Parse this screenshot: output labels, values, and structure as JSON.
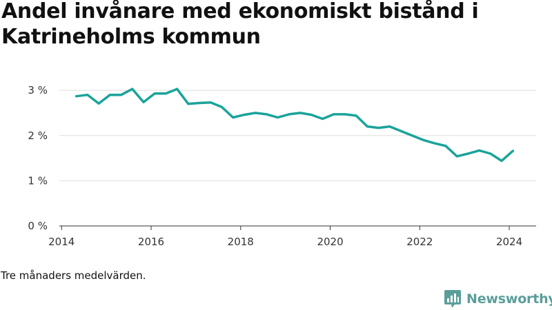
{
  "title": "Andel invånare med ekonomiskt bistånd i Katrineholms kommun",
  "note": "Tre månaders medelvärden.",
  "brand": {
    "name": "Newsworthy",
    "icon": "newsworthy-logo-icon",
    "color": "#5a9e9a"
  },
  "colors": {
    "line": "#1aa39a",
    "grid": "#dddddd",
    "axis": "#333333"
  },
  "chart_data": {
    "type": "line",
    "title": "Andel invånare med ekonomiskt bistånd i Katrineholms kommun",
    "xlabel": "",
    "ylabel": "",
    "xlim": [
      2013.95,
      2024.6
    ],
    "ylim": [
      0,
      3.2
    ],
    "grid": true,
    "x_ticks": [
      {
        "value": 2014,
        "label": "2014"
      },
      {
        "value": 2016,
        "label": "2016"
      },
      {
        "value": 2018,
        "label": "2018"
      },
      {
        "value": 2020,
        "label": "2020"
      },
      {
        "value": 2022,
        "label": "2022"
      },
      {
        "value": 2024,
        "label": "2024"
      }
    ],
    "y_ticks": [
      {
        "value": 0,
        "label": "0 %"
      },
      {
        "value": 1,
        "label": "1 %"
      },
      {
        "value": 2,
        "label": "2 %"
      },
      {
        "value": 3,
        "label": "3 %"
      }
    ],
    "series": [
      {
        "x": [
          2014.33,
          2014.58,
          2014.83,
          2015.08,
          2015.33,
          2015.58,
          2015.83,
          2016.08,
          2016.33,
          2016.58,
          2016.83,
          2017.08,
          2017.33,
          2017.58,
          2017.83,
          2018.08,
          2018.33,
          2018.58,
          2018.83,
          2019.08,
          2019.33,
          2019.58,
          2019.83,
          2020.08,
          2020.33,
          2020.58,
          2020.83,
          2021.08,
          2021.33,
          2021.58,
          2021.83,
          2022.08,
          2022.33,
          2022.58,
          2022.83,
          2023.08,
          2023.33,
          2023.58,
          2023.83,
          2024.08
        ],
        "values": [
          2.87,
          2.9,
          2.71,
          2.9,
          2.9,
          3.03,
          2.74,
          2.93,
          2.93,
          3.03,
          2.7,
          2.72,
          2.73,
          2.63,
          2.4,
          2.46,
          2.5,
          2.47,
          2.4,
          2.47,
          2.5,
          2.46,
          2.37,
          2.47,
          2.47,
          2.44,
          2.2,
          2.17,
          2.2,
          2.1,
          2.0,
          1.9,
          1.83,
          1.77,
          1.54,
          1.6,
          1.67,
          1.6,
          1.44,
          1.66
        ]
      }
    ]
  }
}
